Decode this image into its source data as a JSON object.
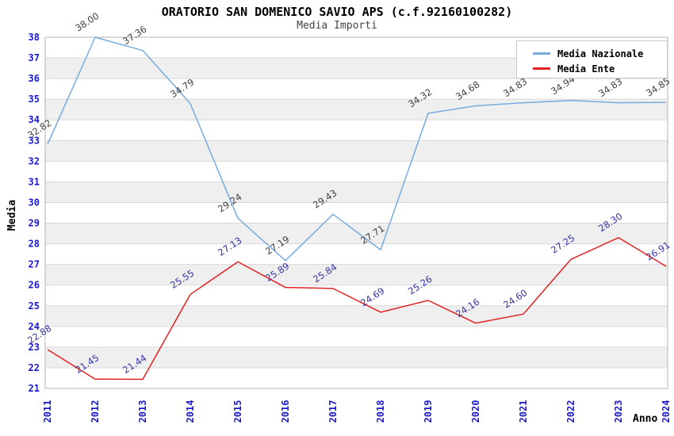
{
  "header": {
    "title": "ORATORIO SAN DOMENICO SAVIO APS (c.f.92160100282)",
    "subtitle": "Media Importi"
  },
  "chart_data": {
    "type": "line",
    "title": "ORATORIO SAN DOMENICO SAVIO APS (c.f.92160100282)",
    "subtitle": "Media Importi",
    "xlabel": "Anno",
    "ylabel": "Media",
    "ylim": [
      21,
      38
    ],
    "y_tick_step": 1,
    "grid": true,
    "legend_position": "top-right",
    "x": [
      "2011",
      "2012",
      "2013",
      "2014",
      "2015",
      "2016",
      "2017",
      "2018",
      "2019",
      "2020",
      "2021",
      "2022",
      "2023",
      "2024"
    ],
    "series": [
      {
        "name": "Media Nazionale",
        "color": "#76ABDF",
        "label_color": "#404040",
        "values": [
          32.82,
          38.0,
          37.36,
          34.79,
          29.24,
          27.19,
          29.43,
          27.71,
          34.32,
          34.68,
          34.83,
          34.94,
          34.83,
          34.85
        ]
      },
      {
        "name": "Media Ente",
        "color": "#E22222",
        "label_color": "#3333AA",
        "values": [
          22.88,
          21.45,
          21.44,
          25.55,
          27.13,
          25.89,
          25.84,
          24.69,
          25.26,
          24.16,
          24.6,
          27.25,
          28.3,
          26.91
        ]
      }
    ],
    "colors": {
      "tick_label": "#1a1acc",
      "band_gray": "#efefef",
      "gridline": "#d9d9d9",
      "plot_border": "#b3b3b3"
    }
  }
}
